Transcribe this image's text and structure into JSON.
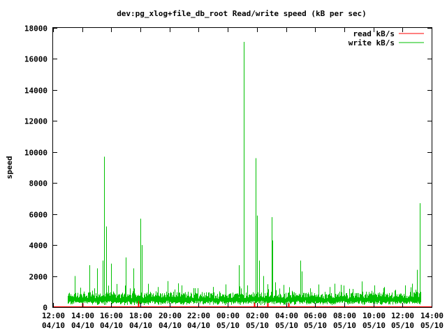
{
  "chart_data": {
    "type": "line",
    "title": "dev:pg_xlog+file_db_root Read/write speed (kB per sec)",
    "ylabel": "speed",
    "xlabel": "",
    "ylim": [
      0,
      18000
    ],
    "xlim": [
      "04/10 12:00",
      "05/10 14:00"
    ],
    "grid": false,
    "legend_position": "top-right",
    "y_ticks": [
      "0",
      "2000",
      "4000",
      "6000",
      "8000",
      "10000",
      "12000",
      "14000",
      "16000",
      "18000"
    ],
    "x_ticks": [
      {
        "time": "12:00",
        "date": "04/10"
      },
      {
        "time": "14:00",
        "date": "04/10"
      },
      {
        "time": "16:00",
        "date": "04/10"
      },
      {
        "time": "18:00",
        "date": "04/10"
      },
      {
        "time": "20:00",
        "date": "04/10"
      },
      {
        "time": "22:00",
        "date": "04/10"
      },
      {
        "time": "00:00",
        "date": "05/10"
      },
      {
        "time": "02:00",
        "date": "05/10"
      },
      {
        "time": "04:00",
        "date": "05/10"
      },
      {
        "time": "06:00",
        "date": "05/10"
      },
      {
        "time": "08:00",
        "date": "05/10"
      },
      {
        "time": "10:00",
        "date": "05/10"
      },
      {
        "time": "12:00",
        "date": "05/10"
      },
      {
        "time": "14:00",
        "date": "05/10"
      }
    ],
    "series": [
      {
        "name": "read kB/s",
        "color": "#ff0000",
        "baseline": 0,
        "spikes": [
          {
            "time": "04/10 14:00",
            "value": 250
          },
          {
            "time": "04/10 17:50",
            "value": 400
          },
          {
            "time": "05/10 01:50",
            "value": 300
          },
          {
            "time": "05/10 02:45",
            "value": 350
          },
          {
            "time": "05/10 04:10",
            "value": 250
          }
        ]
      },
      {
        "name": "write kB/s",
        "color": "#00c000",
        "baseline": 650,
        "start": "04/10 13:00",
        "end": "05/10 13:15",
        "spikes": [
          {
            "time": "04/10 13:30",
            "value": 2000
          },
          {
            "time": "04/10 14:30",
            "value": 2700
          },
          {
            "time": "04/10 15:00",
            "value": 2500
          },
          {
            "time": "04/10 15:25",
            "value": 3000
          },
          {
            "time": "04/10 15:30",
            "value": 9700
          },
          {
            "time": "04/10 15:40",
            "value": 5200
          },
          {
            "time": "04/10 16:00",
            "value": 2800
          },
          {
            "time": "04/10 17:00",
            "value": 3200
          },
          {
            "time": "04/10 17:30",
            "value": 2500
          },
          {
            "time": "04/10 18:00",
            "value": 5700
          },
          {
            "time": "04/10 18:05",
            "value": 4000
          },
          {
            "time": "04/10 18:30",
            "value": 1500
          },
          {
            "time": "04/10 20:50",
            "value": 1400
          },
          {
            "time": "04/10 23:00",
            "value": 1300
          },
          {
            "time": "05/10 00:45",
            "value": 2700
          },
          {
            "time": "05/10 01:05",
            "value": 17100
          },
          {
            "time": "05/10 01:20",
            "value": 1400
          },
          {
            "time": "05/10 01:55",
            "value": 9600
          },
          {
            "time": "05/10 02:00",
            "value": 5900
          },
          {
            "time": "05/10 02:10",
            "value": 3000
          },
          {
            "time": "05/10 02:25",
            "value": 2000
          },
          {
            "time": "05/10 03:00",
            "value": 5800
          },
          {
            "time": "05/10 03:05",
            "value": 4300
          },
          {
            "time": "05/10 03:15",
            "value": 1600
          },
          {
            "time": "05/10 05:00",
            "value": 3000
          },
          {
            "time": "05/10 05:05",
            "value": 2300
          },
          {
            "time": "05/10 07:00",
            "value": 1100
          },
          {
            "time": "05/10 10:05",
            "value": 1400
          },
          {
            "time": "05/10 12:10",
            "value": 1400
          },
          {
            "time": "05/10 13:00",
            "value": 2400
          },
          {
            "time": "05/10 13:10",
            "value": 6700
          }
        ]
      }
    ]
  }
}
